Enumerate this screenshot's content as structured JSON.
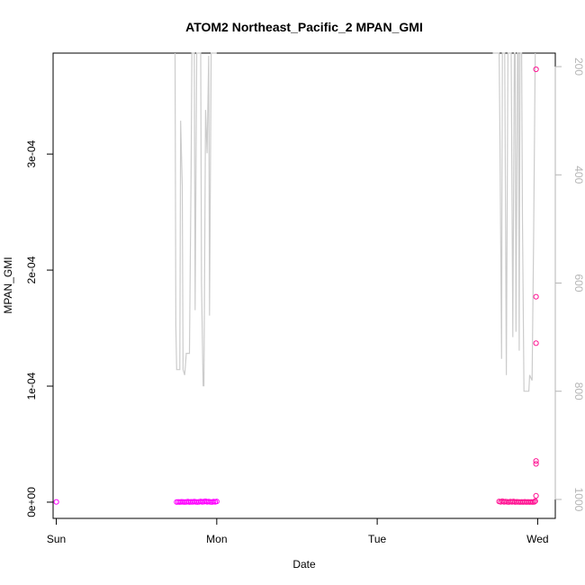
{
  "chart_data": {
    "type": "scatter",
    "title": "ATOM2 Northeast_Pacific_2 MPAN_GMI",
    "xlabel": "Date",
    "ylabel": "MPAN_GMI",
    "x_tick_labels": [
      "Sun",
      "Mon",
      "Tue",
      "Wed"
    ],
    "x_tick_values": [
      0,
      1,
      2,
      3
    ],
    "xlim": [
      -0.02,
      3.11
    ],
    "ylim": [
      -1.4e-05,
      0.000387
    ],
    "y_ticks": [
      0,
      0.0001,
      0.0002,
      0.0003
    ],
    "y_tick_labels": [
      "0e+00",
      "1e-04",
      "2e-04",
      "3e-04"
    ],
    "y2_ticks": [
      200,
      400,
      600,
      800,
      1000
    ],
    "y2_tick_labels": [
      "200",
      "400",
      "600",
      "800",
      "1000"
    ],
    "y2_lim": [
      1035,
      175
    ],
    "grid": false,
    "colors": {
      "points": "#ff00ff",
      "points_late": "#ff1493",
      "pressure_line": "#cccccc",
      "right_axis": "#b5b5b5"
    },
    "series": [
      {
        "kind": "points",
        "points": [
          {
            "x": 0.0,
            "y": 2e-07
          },
          {
            "x": 0.75,
            "y": 1e-07
          },
          {
            "x": 0.76,
            "y": 2e-07
          },
          {
            "x": 0.77,
            "y": 1e-07
          },
          {
            "x": 0.78,
            "y": 3e-07
          },
          {
            "x": 0.79,
            "y": 2e-07
          },
          {
            "x": 0.8,
            "y": 1e-07
          },
          {
            "x": 0.81,
            "y": 2e-07
          },
          {
            "x": 0.82,
            "y": 4e-07
          },
          {
            "x": 0.83,
            "y": 1e-07
          },
          {
            "x": 0.84,
            "y": 3e-07
          },
          {
            "x": 0.85,
            "y": 2e-07
          },
          {
            "x": 0.86,
            "y": 5e-07
          },
          {
            "x": 0.87,
            "y": 2e-07
          },
          {
            "x": 0.88,
            "y": 1e-07
          },
          {
            "x": 0.89,
            "y": 3e-07
          },
          {
            "x": 0.9,
            "y": 6e-07
          },
          {
            "x": 0.91,
            "y": 2e-07
          },
          {
            "x": 0.92,
            "y": 4e-07
          },
          {
            "x": 0.93,
            "y": 7e-07
          },
          {
            "x": 0.94,
            "y": 3e-07
          },
          {
            "x": 0.95,
            "y": 5e-07
          },
          {
            "x": 0.96,
            "y": 2e-07
          },
          {
            "x": 0.97,
            "y": 1e-07
          },
          {
            "x": 0.98,
            "y": 4e-07
          },
          {
            "x": 0.99,
            "y": 3e-07
          },
          {
            "x": 1.0,
            "y": 6e-07
          }
        ]
      },
      {
        "kind": "points",
        "points": [
          {
            "x": 2.76,
            "y": 6e-07
          },
          {
            "x": 2.77,
            "y": 3e-07
          },
          {
            "x": 2.78,
            "y": 8e-07
          },
          {
            "x": 2.79,
            "y": 2e-07
          },
          {
            "x": 2.8,
            "y": 5e-07
          },
          {
            "x": 2.81,
            "y": 3e-07
          },
          {
            "x": 2.82,
            "y": 1e-07
          },
          {
            "x": 2.83,
            "y": 4e-07
          },
          {
            "x": 2.84,
            "y": 2e-07
          },
          {
            "x": 2.85,
            "y": 6e-07
          },
          {
            "x": 2.86,
            "y": 1e-07
          },
          {
            "x": 2.87,
            "y": 3e-07
          },
          {
            "x": 2.88,
            "y": 2e-07
          },
          {
            "x": 2.89,
            "y": 1e-07
          },
          {
            "x": 2.9,
            "y": 2e-07
          },
          {
            "x": 2.91,
            "y": 1e-07
          },
          {
            "x": 2.92,
            "y": 3e-07
          },
          {
            "x": 2.93,
            "y": 1e-07
          },
          {
            "x": 2.94,
            "y": 2e-07
          },
          {
            "x": 2.95,
            "y": 1e-07
          },
          {
            "x": 2.96,
            "y": 2e-07
          },
          {
            "x": 2.97,
            "y": 1e-07
          },
          {
            "x": 2.98,
            "y": 3e-07
          },
          {
            "x": 2.985,
            "y": 1e-06
          },
          {
            "x": 2.99,
            "y": 5.5e-06
          },
          {
            "x": 2.99,
            "y": 3.3e-05
          },
          {
            "x": 2.99,
            "y": 3.55e-05
          },
          {
            "x": 2.99,
            "y": 0.000137
          },
          {
            "x": 2.99,
            "y": 0.000177
          },
          {
            "x": 2.99,
            "y": 0.000373
          }
        ]
      },
      {
        "kind": "line",
        "axis": "right",
        "points": [
          {
            "x": 0.74,
            "y": 175
          },
          {
            "x": 0.745,
            "y": 680
          },
          {
            "x": 0.75,
            "y": 760
          },
          {
            "x": 0.77,
            "y": 760
          },
          {
            "x": 0.775,
            "y": 300
          },
          {
            "x": 0.785,
            "y": 420
          },
          {
            "x": 0.79,
            "y": 760
          },
          {
            "x": 0.8,
            "y": 770
          },
          {
            "x": 0.81,
            "y": 730
          },
          {
            "x": 0.83,
            "y": 730
          },
          {
            "x": 0.84,
            "y": 400
          },
          {
            "x": 0.845,
            "y": 175
          },
          {
            "x": 0.86,
            "y": 175
          },
          {
            "x": 0.865,
            "y": 650
          },
          {
            "x": 0.875,
            "y": 175
          },
          {
            "x": 0.9,
            "y": 175
          },
          {
            "x": 0.905,
            "y": 600
          },
          {
            "x": 0.915,
            "y": 790
          },
          {
            "x": 0.92,
            "y": 790
          },
          {
            "x": 0.93,
            "y": 280
          },
          {
            "x": 0.94,
            "y": 360
          },
          {
            "x": 0.95,
            "y": 180
          },
          {
            "x": 0.955,
            "y": 660
          },
          {
            "x": 0.965,
            "y": 175
          },
          {
            "x": 1.0,
            "y": 175
          }
        ]
      },
      {
        "kind": "line",
        "axis": "right",
        "points": [
          {
            "x": 2.72,
            "y": 175
          },
          {
            "x": 2.76,
            "y": 175
          },
          {
            "x": 2.765,
            "y": 330
          },
          {
            "x": 2.775,
            "y": 740
          },
          {
            "x": 2.78,
            "y": 175
          },
          {
            "x": 2.795,
            "y": 175
          },
          {
            "x": 2.805,
            "y": 770
          },
          {
            "x": 2.815,
            "y": 175
          },
          {
            "x": 2.835,
            "y": 175
          },
          {
            "x": 2.845,
            "y": 700
          },
          {
            "x": 2.855,
            "y": 175
          },
          {
            "x": 2.86,
            "y": 175
          },
          {
            "x": 2.865,
            "y": 690
          },
          {
            "x": 2.875,
            "y": 175
          },
          {
            "x": 2.88,
            "y": 175
          },
          {
            "x": 2.885,
            "y": 725
          },
          {
            "x": 2.89,
            "y": 175
          },
          {
            "x": 2.9,
            "y": 175
          },
          {
            "x": 2.905,
            "y": 480
          },
          {
            "x": 2.915,
            "y": 800
          },
          {
            "x": 2.945,
            "y": 800
          },
          {
            "x": 2.95,
            "y": 770
          },
          {
            "x": 2.965,
            "y": 780
          },
          {
            "x": 2.975,
            "y": 520
          },
          {
            "x": 2.985,
            "y": 175
          }
        ]
      }
    ]
  }
}
